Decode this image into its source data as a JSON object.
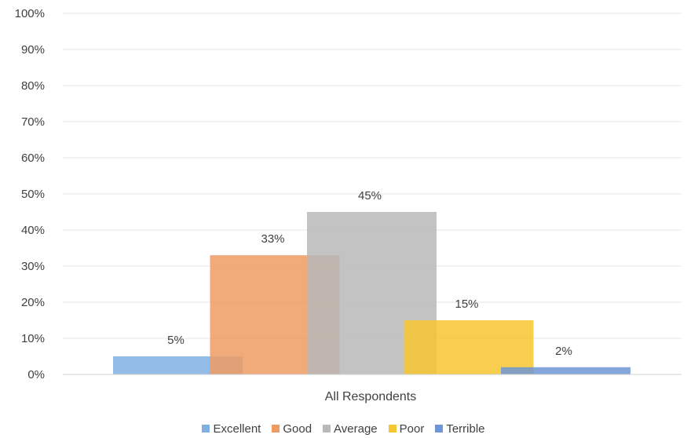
{
  "chart_data": {
    "type": "bar",
    "categories": [
      "All Respondents"
    ],
    "series": [
      {
        "name": "Excellent",
        "values": [
          5
        ],
        "color": "#7FB0E0"
      },
      {
        "name": "Good",
        "values": [
          33
        ],
        "color": "#EF9B62"
      },
      {
        "name": "Average",
        "values": [
          45
        ],
        "color": "#B9B9B9"
      },
      {
        "name": "Poor",
        "values": [
          15
        ],
        "color": "#F6C52F"
      },
      {
        "name": "Terrible",
        "values": [
          2
        ],
        "color": "#6E96D4"
      }
    ],
    "data_labels": [
      "5%",
      "33%",
      "45%",
      "15%",
      "2%"
    ],
    "y_ticks": [
      "0%",
      "10%",
      "20%",
      "30%",
      "40%",
      "50%",
      "60%",
      "70%",
      "80%",
      "90%",
      "100%"
    ],
    "ylim": [
      0,
      100
    ],
    "grid": true,
    "legend_position": "bottom",
    "overlapping_bars": true
  }
}
